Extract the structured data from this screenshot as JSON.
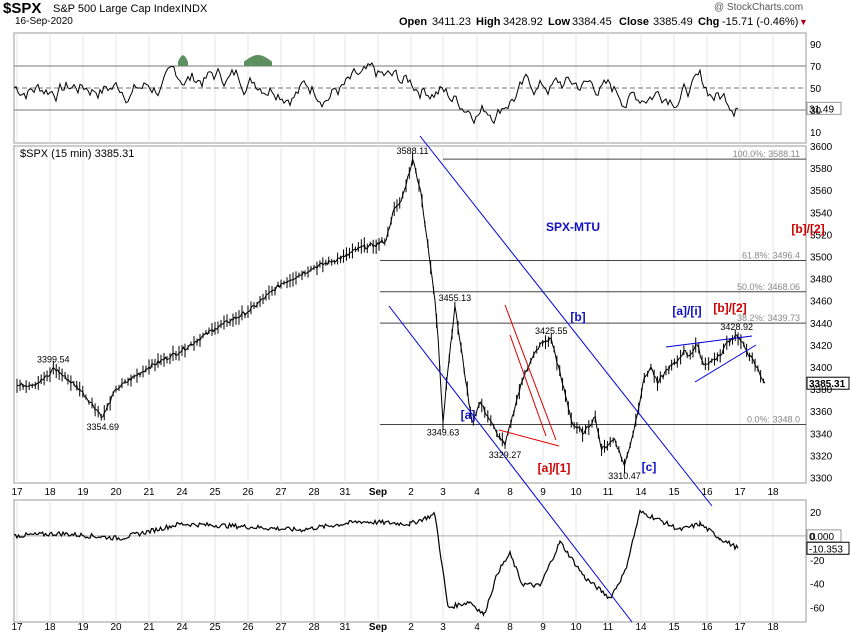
{
  "header": {
    "symbol": "$SPX",
    "name": "S&P 500 Large Cap Index",
    "exchange": "INDX",
    "date": "16-Sep-2020",
    "watermark": "@ StockCharts.com",
    "open_label": "Open",
    "open": "3411.23",
    "high_label": "High",
    "high": "3428.92",
    "low_label": "Low",
    "low": "3384.45",
    "close_label": "Close",
    "close": "3385.49",
    "chg_label": "Chg",
    "chg": "-15.71 (-0.46%)",
    "chg_arrow": "▼"
  },
  "colors": {
    "price": "#000000",
    "channel": "#0000dd",
    "wedge_red": "#dd0000",
    "fib": "#444444",
    "wave_blue": "#1010c0",
    "wave_red": "#cc0000",
    "rsi_fill": "#5e8f5e"
  },
  "chart_data": [
    {
      "type": "line",
      "panel": "rsi",
      "ylim": [
        0,
        100
      ],
      "y_ticks": [
        10,
        30,
        50,
        70,
        90
      ],
      "reference_lines": [
        30,
        50,
        70
      ],
      "current_value_label": "31.49",
      "current_value": 31.49
    },
    {
      "type": "candlestick",
      "panel": "price",
      "legend": "$SPX (15 min) 3385.31",
      "ylim": [
        3295,
        3600
      ],
      "y_ticks": [
        3300,
        3320,
        3340,
        3360,
        3380,
        3400,
        3420,
        3440,
        3460,
        3480,
        3500,
        3520,
        3540,
        3560,
        3580,
        3600
      ],
      "last_price_label": "3385.31",
      "last_price": 3385.31,
      "approx_path": {
        "x_session": [
          0,
          0.6,
          1.0,
          1.1,
          1.9,
          2.6,
          3.0,
          4.0,
          5.0,
          6.0,
          7.0,
          8.0,
          9.0,
          10.0,
          10.45,
          10.9,
          11.25,
          11.45,
          11.7,
          11.8,
          12.05,
          12.3,
          12.75,
          12.85,
          13.0,
          13.1,
          13.35,
          13.85,
          14.1,
          14.6,
          14.85,
          15.2,
          15.45,
          15.9,
          16.25,
          16.55,
          16.9,
          17.25,
          17.6,
          17.8,
          18.2,
          18.5,
          18.8,
          19.1,
          19.3,
          19.5,
          19.8,
          20.1,
          20.3,
          20.45,
          20.7,
          20.9,
          21.1,
          21.4,
          21.6,
          21.9,
          22.2,
          22.5,
          22.75
        ],
        "price": [
          3383,
          3385,
          3393,
          3399.5,
          3380,
          3354.7,
          3380,
          3400,
          3415,
          3435,
          3450,
          3475,
          3490,
          3500,
          3508,
          3510,
          3515,
          3540,
          3550,
          3560,
          3588.11,
          3560,
          3460,
          3425,
          3349.63,
          3385,
          3455.13,
          3350,
          3368,
          3340,
          3329.27,
          3370,
          3395,
          3420,
          3425.55,
          3390,
          3348,
          3340,
          3355,
          3325,
          3335,
          3310.47,
          3345,
          3390,
          3400,
          3385,
          3398,
          3405,
          3415,
          3410,
          3420,
          3402,
          3405,
          3410,
          3422,
          3428.92,
          3415,
          3400,
          3385.31
        ]
      },
      "price_labels": [
        {
          "text": "3588.11",
          "x_session": 12.05,
          "price": 3588.11
        },
        {
          "text": "3399.54",
          "x_session": 1.1,
          "price": 3399.54
        },
        {
          "text": "3354.69",
          "x_session": 2.6,
          "price": 3354.69
        },
        {
          "text": "3455.13",
          "x_session": 13.35,
          "price": 3455.13
        },
        {
          "text": "3349.63",
          "x_session": 13.0,
          "price": 3349.63
        },
        {
          "text": "3329.27",
          "x_session": 14.85,
          "price": 3329.27
        },
        {
          "text": "3425.55",
          "x_session": 16.25,
          "price": 3425.55
        },
        {
          "text": "3310.47",
          "x_session": 18.5,
          "price": 3310.47
        },
        {
          "text": "3428.92",
          "x_session": 21.9,
          "price": 3428.92
        }
      ],
      "fib_levels": [
        {
          "label": "100.0%: 3588.11",
          "price": 3588.11
        },
        {
          "label": "61.8%: 3496.4",
          "price": 3496.4
        },
        {
          "label": "50.0%: 3468.06",
          "price": 3468.06
        },
        {
          "label": "38.2%: 3439.73",
          "price": 3439.73
        },
        {
          "label": "0.0%: 3348.0",
          "price": 3348.0
        }
      ],
      "annotations": [
        {
          "text": "SPX-MTU",
          "color": "blue"
        },
        {
          "text": "[a]",
          "color": "blue"
        },
        {
          "text": "[b]",
          "color": "blue"
        },
        {
          "text": "[c]",
          "color": "blue"
        },
        {
          "text": "[a]/[i]",
          "color": "blue"
        },
        {
          "text": "[b]/[2]",
          "color": "red"
        },
        {
          "text": "[a]/[1]",
          "color": "red"
        },
        {
          "text": "[b]/[2]",
          "color": "red"
        }
      ]
    },
    {
      "type": "line",
      "panel": "oscillator",
      "ylim": [
        -72,
        30
      ],
      "y_ticks": [
        -60,
        -40,
        -20,
        0,
        20
      ],
      "value_labels": [
        "0.000",
        "-10.353"
      ],
      "values": [
        0,
        -10.353
      ]
    }
  ],
  "x_axis": {
    "labels": [
      "17",
      "18",
      "19",
      "20",
      "21",
      "24",
      "25",
      "26",
      "27",
      "28",
      "31",
      "Sep",
      "2",
      "3",
      "4",
      "8",
      "9",
      "10",
      "11",
      "14",
      "15",
      "16",
      "17",
      "18"
    ]
  }
}
